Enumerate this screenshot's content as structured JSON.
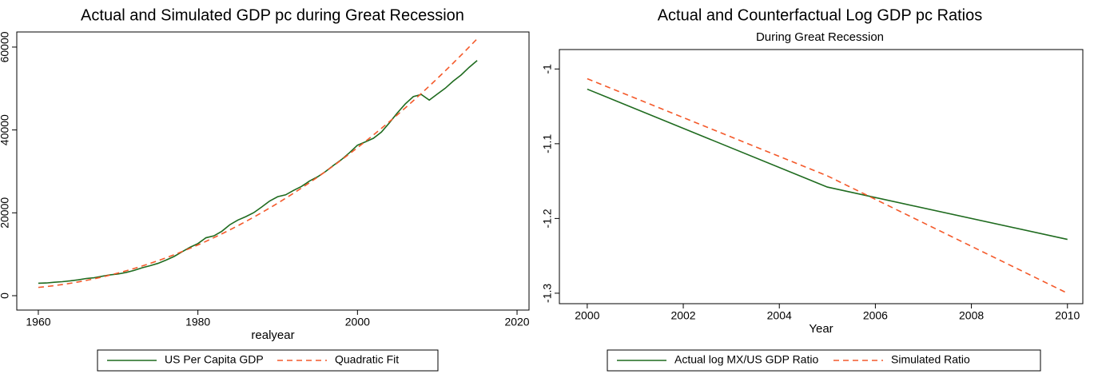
{
  "chart_data": [
    {
      "type": "line",
      "title": "Actual and Simulated GDP pc during Great Recession",
      "x_label": "realyear",
      "x": [
        1960,
        1961,
        1962,
        1963,
        1964,
        1965,
        1966,
        1967,
        1968,
        1969,
        1970,
        1971,
        1972,
        1973,
        1974,
        1975,
        1976,
        1977,
        1978,
        1979,
        1980,
        1981,
        1982,
        1983,
        1984,
        1985,
        1986,
        1987,
        1988,
        1989,
        1990,
        1991,
        1992,
        1993,
        1994,
        1995,
        1996,
        1997,
        1998,
        1999,
        2000,
        2001,
        2002,
        2003,
        2004,
        2005,
        2006,
        2007,
        2008,
        2009,
        2010,
        2011,
        2012,
        2013,
        2014,
        2015
      ],
      "series": [
        {
          "name": "US Per Capita GDP",
          "color": "#1f6b1f",
          "line_style": "solid",
          "values": [
            3007,
            3067,
            3244,
            3375,
            3574,
            3828,
            4146,
            4336,
            4696,
            5032,
            5234,
            5609,
            6094,
            6726,
            7226,
            7801,
            8592,
            9453,
            10565,
            11674,
            12575,
            13976,
            14434,
            15544,
            17121,
            18237,
            19071,
            20039,
            21417,
            22857,
            23889,
            24342,
            25419,
            26387,
            27695,
            28691,
            29968,
            31459,
            32854,
            34516,
            36330,
            37134,
            37998,
            39490,
            41725,
            44123,
            46302,
            48050,
            48570,
            47195,
            48651,
            50066,
            51784,
            53291,
            55124,
            56763
          ]
        },
        {
          "name": "Quadratic Fit",
          "color": "#f4592a",
          "line_style": "dashed",
          "values": [
            2000,
            2198,
            2430,
            2694,
            2992,
            3322,
            3686,
            4082,
            4512,
            4975,
            5471,
            6000,
            6563,
            7157,
            7785,
            8446,
            9140,
            9868,
            10628,
            11421,
            12248,
            13108,
            14000,
            14926,
            15885,
            16876,
            17902,
            18960,
            20050,
            21175,
            22331,
            23522,
            24745,
            26001,
            27291,
            28613,
            29968,
            31357,
            32778,
            34233,
            35720,
            37241,
            38794,
            40381,
            42000,
            43653,
            45338,
            47057,
            48809,
            50593,
            52411,
            54262,
            56146,
            58062,
            60012,
            61995
          ]
        }
      ],
      "xlim": [
        1957.3,
        2021.5
      ],
      "xticks": [
        1960,
        1980,
        2000,
        2020
      ],
      "ylim": [
        -3470,
        63650
      ],
      "yticks": [
        0,
        20000,
        40000,
        60000
      ],
      "legend": "bottom"
    },
    {
      "type": "line",
      "title": "Actual and Counterfactual Log GDP pc Ratios",
      "subtitle": "During Great Recession",
      "x_label": "Year",
      "x": [
        2000,
        2005,
        2010
      ],
      "series": [
        {
          "name": "Actual log MX/US GDP Ratio",
          "color": "#1f6b1f",
          "line_style": "solid",
          "values": [
            -1.027,
            -1.158,
            -1.228
          ]
        },
        {
          "name": "Simulated Ratio",
          "color": "#f4592a",
          "line_style": "dashed",
          "values": [
            -1.013,
            -1.143,
            -1.3
          ]
        }
      ],
      "xlim": [
        1999.42,
        2010.32
      ],
      "xticks": [
        2000,
        2002,
        2004,
        2006,
        2008,
        2010
      ],
      "ylim": [
        -1.314,
        -0.974
      ],
      "yticks": [
        -1,
        -1.1,
        -1.2,
        -1.3
      ],
      "legend": "bottom"
    }
  ]
}
